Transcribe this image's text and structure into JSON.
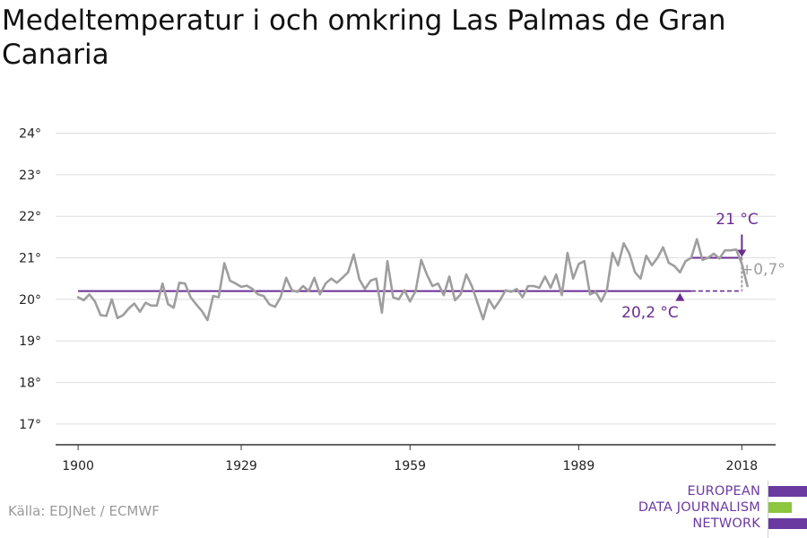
{
  "page": {
    "title": "Medeltemperatur i och omkring Las Palmas de Gran Canaria",
    "source": "Källa: EDJNet / ECMWF",
    "logo_lines": [
      "EUROPEAN",
      "DATA JOURNALISM",
      "NETWORK"
    ],
    "logo_colors": [
      "#6b3aa0",
      "#8dc63f",
      "#6b3aa0"
    ]
  },
  "colors": {
    "series": "#9e9e9e",
    "accent": "#6b2d91",
    "grid": "#dddddd",
    "axis": "#333333",
    "text": "#222222"
  },
  "chart_data": {
    "type": "line",
    "title": "Medeltemperatur i och omkring Las Palmas de Gran Canaria",
    "xlabel": "",
    "ylabel": "",
    "xlim": [
      1896,
      2024
    ],
    "ylim": [
      16.5,
      24.4
    ],
    "grid": true,
    "y_ticks": [
      17,
      18,
      19,
      20,
      21,
      22,
      23,
      24
    ],
    "y_tick_labels": [
      "17°",
      "18°",
      "19°",
      "20°",
      "21°",
      "22°",
      "23°",
      "24°"
    ],
    "x_ticks": [
      1900,
      1929,
      1959,
      1989,
      2018
    ],
    "x_tick_labels": [
      "1900",
      "1929",
      "1959",
      "1989",
      "2018"
    ],
    "series": [
      {
        "x": [
          1900,
          1901,
          1902,
          1903,
          1904,
          1905,
          1906,
          1907,
          1908,
          1909,
          1910,
          1911,
          1912,
          1913,
          1914,
          1915,
          1916,
          1917,
          1918,
          1919,
          1920,
          1921,
          1922,
          1923,
          1924,
          1925,
          1926,
          1927,
          1928,
          1929,
          1930,
          1931,
          1932,
          1933,
          1934,
          1935,
          1936,
          1937,
          1938,
          1939,
          1940,
          1941,
          1942,
          1943,
          1944,
          1945,
          1946,
          1947,
          1948,
          1949,
          1950,
          1951,
          1952,
          1953,
          1954,
          1955,
          1956,
          1957,
          1958,
          1959,
          1960,
          1961,
          1962,
          1963,
          1964,
          1965,
          1966,
          1967,
          1968,
          1969,
          1970,
          1971,
          1972,
          1973,
          1974,
          1975,
          1976,
          1977,
          1978,
          1979,
          1980,
          1981,
          1982,
          1983,
          1984,
          1985,
          1986,
          1987,
          1988,
          1989,
          1990,
          1991,
          1992,
          1993,
          1994,
          1995,
          1996,
          1997,
          1998,
          1999,
          2000,
          2001,
          2002,
          2003,
          2004,
          2005,
          2006,
          2007,
          2008,
          2009,
          2010,
          2011,
          2012,
          2013,
          2014,
          2015,
          2016,
          2017,
          2018,
          2019
        ],
        "values": [
          20.05,
          19.98,
          20.12,
          19.95,
          19.62,
          19.6,
          20.0,
          19.55,
          19.62,
          19.78,
          19.9,
          19.7,
          19.92,
          19.85,
          19.85,
          20.38,
          19.88,
          19.8,
          20.4,
          20.38,
          20.05,
          19.88,
          19.72,
          19.5,
          20.08,
          20.05,
          20.87,
          20.45,
          20.38,
          20.3,
          20.33,
          20.25,
          20.12,
          20.08,
          19.88,
          19.82,
          20.05,
          20.52,
          20.22,
          20.18,
          20.32,
          20.2,
          20.52,
          20.12,
          20.38,
          20.5,
          20.4,
          20.52,
          20.65,
          21.08,
          20.48,
          20.25,
          20.45,
          20.5,
          19.68,
          20.92,
          20.05,
          20.0,
          20.22,
          19.95,
          20.2,
          20.95,
          20.6,
          20.32,
          20.38,
          20.1,
          20.55,
          19.98,
          20.12,
          20.6,
          20.32,
          19.92,
          19.52,
          20.0,
          19.78,
          19.98,
          20.22,
          20.18,
          20.25,
          20.05,
          20.32,
          20.32,
          20.28,
          20.55,
          20.28,
          20.6,
          20.1,
          21.12,
          20.5,
          20.85,
          20.92,
          20.12,
          20.18,
          19.95,
          20.22,
          21.12,
          20.82,
          21.35,
          21.1,
          20.65,
          20.5,
          21.05,
          20.82,
          21.0,
          21.25,
          20.88,
          20.8,
          20.65,
          20.92,
          21.0,
          21.45,
          20.95,
          21.0,
          21.1,
          20.98,
          21.18,
          21.18,
          21.2,
          20.85,
          20.32
        ]
      }
    ],
    "annotations": {
      "baseline_label": "20,2 °C",
      "baseline_value": 20.2,
      "baseline_range": [
        1900,
        2018
      ],
      "recent_label": "21 °C",
      "recent_value": 21.0,
      "recent_range": [
        2009,
        2018
      ],
      "diff_label": "+0,7°"
    }
  }
}
